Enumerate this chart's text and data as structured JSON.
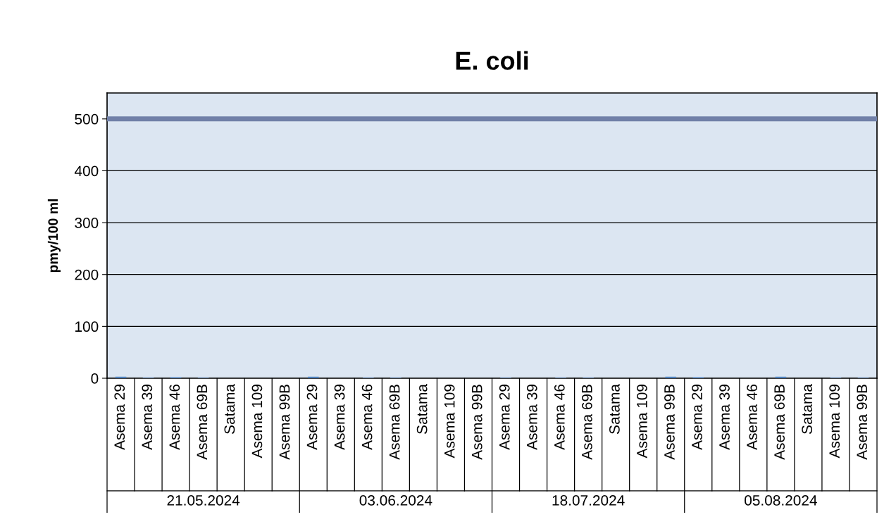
{
  "chart_data": {
    "type": "bar",
    "title": "E. coli",
    "ylabel": "pmy/100 ml",
    "categories": [
      "Asema 29",
      "Asema 39",
      "Asema 46",
      "Asema 69B",
      "Satama",
      "Asema 109",
      "Asema 99B",
      "Asema 29",
      "Asema 39",
      "Asema 46",
      "Asema 69B",
      "Satama",
      "Asema 109",
      "Asema 99B",
      "Asema 29",
      "Asema 39",
      "Asema 46",
      "Asema 69B",
      "Satama",
      "Asema 109",
      "Asema 99B",
      "Asema 29",
      "Asema 39",
      "Asema 46",
      "Asema 69B",
      "Satama",
      "Asema 109",
      "Asema 99B"
    ],
    "values": [
      3,
      1,
      2,
      1,
      0,
      0,
      0,
      3,
      0,
      1,
      1,
      0,
      0,
      0,
      1,
      0,
      1,
      1,
      0,
      0,
      3,
      2,
      0,
      0,
      3,
      0,
      1,
      1
    ],
    "color": "#4f81bd",
    "annotations": [
      "21.05.2024",
      "03.06.2024",
      "18.07.2024",
      "05.08.2024"
    ],
    "ref_lines": [
      {
        "axis": "y",
        "value": 500,
        "color": "#7180a8"
      }
    ],
    "ylim": [
      0,
      550
    ],
    "yticks": [
      0,
      100,
      200,
      300,
      400,
      500
    ],
    "grid": "y",
    "legend": false
  }
}
